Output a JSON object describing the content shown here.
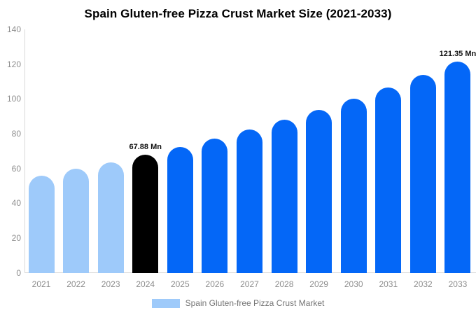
{
  "title": "Spain Gluten-free Pizza Crust Market Size (2021-2033)",
  "legend": {
    "label": "Spain Gluten-free Pizza Crust Market",
    "swatch_color": "#9ECAFA"
  },
  "colors": {
    "light_blue_bar": "#9ECAFA",
    "bright_blue_bar": "#0467F7",
    "highlight_black_bar": "#000000",
    "axis_text": "#8e8e8e",
    "legend_text": "#757575",
    "axis_line": "#d9d9d9",
    "value_label_text": "#111111"
  },
  "chart_data": {
    "type": "bar",
    "title": "Spain Gluten-free Pizza Crust Market Size (2021-2033)",
    "xlabel": "",
    "ylabel": "",
    "unit": "Mn",
    "categories": [
      "2021",
      "2022",
      "2023",
      "2024",
      "2025",
      "2026",
      "2027",
      "2028",
      "2029",
      "2030",
      "2031",
      "2032",
      "2033"
    ],
    "values": [
      55.9,
      59.7,
      63.6,
      67.88,
      72.4,
      77.2,
      82.4,
      87.9,
      93.7,
      100.0,
      106.7,
      113.8,
      121.35
    ],
    "bar_colors": [
      "#9ECAFA",
      "#9ECAFA",
      "#9ECAFA",
      "#000000",
      "#0467F7",
      "#0467F7",
      "#0467F7",
      "#0467F7",
      "#0467F7",
      "#0467F7",
      "#0467F7",
      "#0467F7",
      "#0467F7"
    ],
    "annotations": [
      {
        "category": "2024",
        "label": "67.88 Mn"
      },
      {
        "category": "2033",
        "label": "121.35 Mn"
      }
    ],
    "yticks": [
      0,
      20,
      40,
      60,
      80,
      100,
      120,
      140
    ],
    "ylim": [
      0,
      140
    ],
    "grid": false,
    "legend_position": "bottom",
    "legend_entries": [
      "Spain Gluten-free Pizza Crust Market"
    ]
  }
}
